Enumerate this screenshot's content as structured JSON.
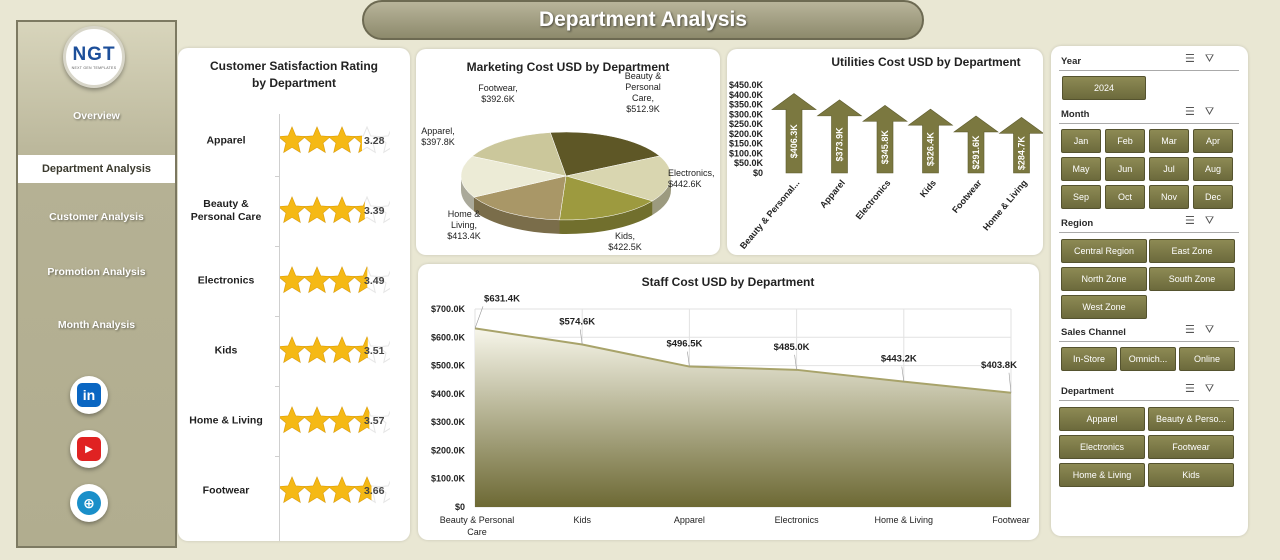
{
  "header": {
    "title": "Department Analysis"
  },
  "sidebar": {
    "logo_text": "NGT",
    "logo_sub": "NEXT GEN TEMPLATES",
    "items": [
      {
        "label": "Overview",
        "active": false
      },
      {
        "label": "Department Analysis",
        "active": true
      },
      {
        "label": "Customer Analysis",
        "active": false
      },
      {
        "label": "Promotion Analysis",
        "active": false
      },
      {
        "label": "Month Analysis",
        "active": false
      }
    ],
    "social": [
      {
        "name": "linkedin-icon",
        "glyph": "in",
        "color": "#0a66c2"
      },
      {
        "name": "youtube-icon",
        "glyph": "▶",
        "color": "#e02222"
      },
      {
        "name": "globe-icon",
        "glyph": "🌐",
        "color": "#1a8fc9"
      }
    ]
  },
  "satisfaction": {
    "title_line1": "Customer Satisfaction Rating",
    "title_line2": "by Department",
    "rows": [
      {
        "label": "Apparel",
        "value": "3.28",
        "rating": 3.28
      },
      {
        "label": "Beauty & Personal Care",
        "value": "3.39",
        "rating": 3.39
      },
      {
        "label": "Electronics",
        "value": "3.49",
        "rating": 3.49
      },
      {
        "label": "Kids",
        "value": "3.51",
        "rating": 3.51
      },
      {
        "label": "Home & Living",
        "value": "3.57",
        "rating": 3.57
      },
      {
        "label": "Footwear",
        "value": "3.66",
        "rating": 3.66
      }
    ]
  },
  "chart_data": [
    {
      "type": "pie",
      "title": "Marketing Cost USD by Department",
      "categories": [
        "Beauty & Personal Care",
        "Electronics",
        "Kids",
        "Home & Living",
        "Apparel",
        "Footwear"
      ],
      "values": [
        512.9,
        442.6,
        422.5,
        413.4,
        397.8,
        392.6
      ],
      "labels": [
        "$512.9K",
        "$442.6K",
        "$422.5K",
        "$413.4K",
        "$397.8K",
        "$392.6K"
      ],
      "label_names": [
        "Beauty & Personal Care,",
        "Electronics,",
        "Kids,",
        "Home & Living,",
        "Apparel,",
        "Footwear,"
      ],
      "colors": [
        "#5e5726",
        "#d9d6b0",
        "#9d9a3f",
        "#a99767",
        "#ecebd6",
        "#cbc79b"
      ]
    },
    {
      "type": "bar",
      "title": "Utilities Cost USD by Department",
      "categories": [
        "Beauty & Personal...",
        "Apparel",
        "Electronics",
        "Kids",
        "Footwear",
        "Home & Living"
      ],
      "values": [
        406.3,
        373.9,
        345.8,
        326.4,
        291.6,
        284.7
      ],
      "labels": [
        "$406.3K",
        "$373.9K",
        "$345.8K",
        "$326.4K",
        "$291.6K",
        "$284.7K"
      ],
      "ylim": [
        0,
        450
      ],
      "yticks": [
        "$0",
        "$50.0K",
        "$100.0K",
        "$150.0K",
        "$200.0K",
        "$250.0K",
        "$300.0K",
        "$350.0K",
        "$400.0K",
        "$450.0K"
      ],
      "grid": false
    },
    {
      "type": "area",
      "title": "Staff Cost USD by Department",
      "categories": [
        "Beauty & Personal Care",
        "Kids",
        "Apparel",
        "Electronics",
        "Home & Living",
        "Footwear"
      ],
      "values": [
        631.4,
        574.6,
        496.5,
        485.0,
        443.2,
        403.8
      ],
      "labels": [
        "$631.4K",
        "$574.6K",
        "$496.5K",
        "$485.0K",
        "$443.2K",
        "$403.8K"
      ],
      "ylim": [
        0,
        700
      ],
      "yticks": [
        "$0",
        "$100.0K",
        "$200.0K",
        "$300.0K",
        "$400.0K",
        "$500.0K",
        "$600.0K",
        "$700.0K"
      ],
      "grid": true
    }
  ],
  "slicers": {
    "year": {
      "title": "Year",
      "options": [
        "2024"
      ]
    },
    "month": {
      "title": "Month",
      "options": [
        "Jan",
        "Feb",
        "Mar",
        "Apr",
        "May",
        "Jun",
        "Jul",
        "Aug",
        "Sep",
        "Oct",
        "Nov",
        "Dec"
      ]
    },
    "region": {
      "title": "Region",
      "options": [
        "Central Region",
        "East Zone",
        "North Zone",
        "South Zone",
        "West Zone"
      ]
    },
    "channel": {
      "title": "Sales Channel",
      "options": [
        "In-Store",
        "Omnich...",
        "Online"
      ]
    },
    "department": {
      "title": "Department",
      "options": [
        "Apparel",
        "Beauty & Perso...",
        "Electronics",
        "Footwear",
        "Home & Living",
        "Kids"
      ]
    }
  }
}
